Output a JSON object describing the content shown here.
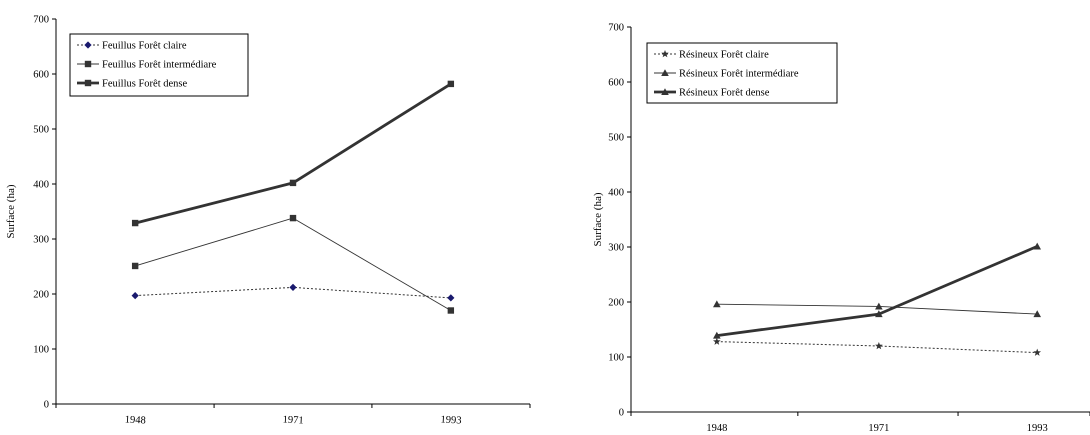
{
  "chart_data": [
    {
      "type": "line",
      "title": "",
      "xlabel": "",
      "ylabel": "Surface (ha)",
      "categories": [
        "1948",
        "1971",
        "1993"
      ],
      "ylim": [
        0,
        700
      ],
      "yticks": [
        0,
        100,
        200,
        300,
        400,
        500,
        600,
        700
      ],
      "grid": false,
      "legend_position": "top-left",
      "series": [
        {
          "name": "Feuillus Forêt claire",
          "values": [
            197,
            212,
            193
          ],
          "style": "dotted",
          "marker": "diamond",
          "marker_color": "#1a1a6e"
        },
        {
          "name": "Feuillus Forêt intermédiare",
          "values": [
            251,
            338,
            170
          ],
          "style": "thin",
          "marker": "square",
          "marker_color": "#333333"
        },
        {
          "name": "Feuillus Forêt dense",
          "values": [
            329,
            402,
            582
          ],
          "style": "thick",
          "marker": "square",
          "marker_color": "#333333"
        }
      ]
    },
    {
      "type": "line",
      "title": "",
      "xlabel": "",
      "ylabel": "Surface (ha)",
      "categories": [
        "1948",
        "1971",
        "1993"
      ],
      "ylim": [
        0,
        700
      ],
      "yticks": [
        0,
        100,
        200,
        300,
        400,
        500,
        600,
        700
      ],
      "grid": false,
      "legend_position": "top-left",
      "series": [
        {
          "name": "Résineux Forêt claire",
          "values": [
            128,
            120,
            108
          ],
          "style": "dotted",
          "marker": "star",
          "marker_color": "#333333"
        },
        {
          "name": "Résineux Forêt intermédiare",
          "values": [
            196,
            192,
            178
          ],
          "style": "thin",
          "marker": "triangle",
          "marker_color": "#333333"
        },
        {
          "name": "Résineux Forêt dense",
          "values": [
            139,
            178,
            301
          ],
          "style": "thick",
          "marker": "triangle",
          "marker_color": "#333333"
        }
      ]
    }
  ]
}
